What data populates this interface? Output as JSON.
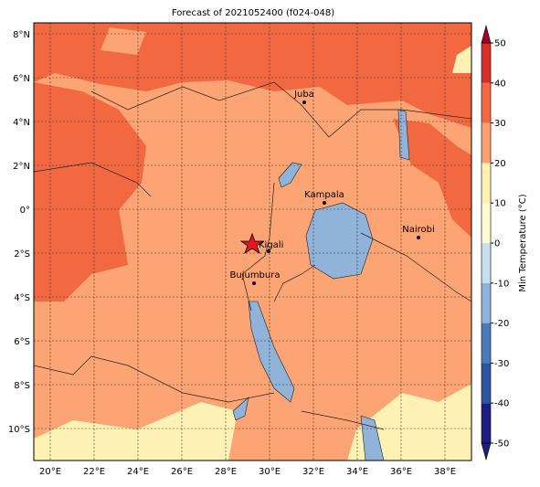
{
  "title": "Forecast of 2021052400 (f024-048)",
  "lon_labels": [
    "20°E",
    "22°E",
    "24°E",
    "26°E",
    "28°E",
    "30°E",
    "32°E",
    "34°E",
    "36°E",
    "38°E"
  ],
  "lat_labels": [
    "8°N",
    "6°N",
    "4°N",
    "2°N",
    "0°",
    "2°S",
    "4°S",
    "6°S",
    "8°S",
    "10°S"
  ],
  "cities": [
    "Juba",
    "Kampala",
    "Nairobi",
    "Kigali",
    "Bujumbura"
  ],
  "colorbar": {
    "label": "Min Temperature (°C)",
    "lim": [
      -50,
      50
    ],
    "ticks": [
      -50,
      -40,
      -30,
      -20,
      -10,
      0,
      10,
      20,
      30,
      40,
      50
    ],
    "colors": [
      "#1c1f80",
      "#2c54a0",
      "#4a7ab8",
      "#8fb3d9",
      "#c8e0ee",
      "#fffbd0",
      "#fdf1b4",
      "#fca070",
      "#f26841",
      "#d7302a",
      "#a50026"
    ]
  }
}
